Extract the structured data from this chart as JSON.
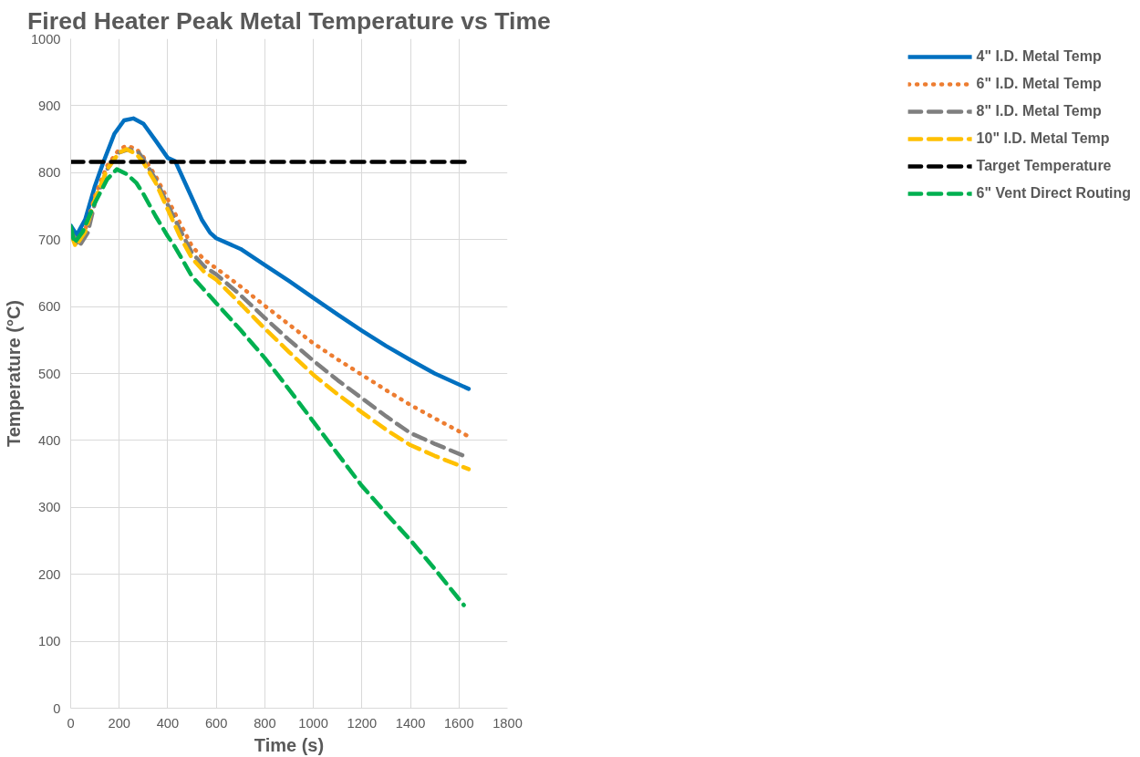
{
  "chart_data": {
    "type": "line",
    "title": "Fired Heater Peak Metal Temperature vs Time",
    "xlabel": "Time (s)",
    "ylabel": "Temperature (°C)",
    "xlim": [
      0,
      1800
    ],
    "xticks": [
      0,
      200,
      400,
      600,
      800,
      1000,
      1200,
      1400,
      1600,
      1800
    ],
    "ylim": [
      0,
      1000
    ],
    "yticks": [
      0,
      100,
      200,
      300,
      400,
      500,
      600,
      700,
      800,
      900,
      1000
    ],
    "grid": true,
    "legend": "right",
    "marker": "none",
    "series": [
      {
        "name": "4\" I.D. Metal Temp",
        "color": "#0070c0",
        "line_style": "solid",
        "x": [
          0,
          25,
          60,
          100,
          133,
          180,
          220,
          258,
          300,
          350,
          400,
          431,
          480,
          540,
          575,
          600,
          700,
          800,
          900,
          1000,
          1100,
          1200,
          1300,
          1400,
          1500,
          1640
        ],
        "values": [
          721,
          707,
          730,
          780,
          814,
          858,
          878,
          881,
          873,
          848,
          822,
          817,
          778,
          730,
          710,
          702,
          686,
          662,
          638,
          613,
          588,
          564,
          541,
          520,
          500,
          477
        ]
      },
      {
        "name": "6\" I.D. Metal Temp",
        "color": "#ed7d31",
        "line_style": "dotted",
        "x": [
          0,
          25,
          60,
          100,
          150,
          200,
          230,
          270,
          300,
          350,
          400,
          450,
          500,
          550,
          600,
          700,
          800,
          900,
          1000,
          1100,
          1200,
          1300,
          1400,
          1500,
          1640
        ],
        "values": [
          715,
          695,
          715,
          765,
          810,
          835,
          840,
          836,
          823,
          795,
          760,
          725,
          690,
          670,
          657,
          630,
          601,
          573,
          545,
          521,
          498,
          475,
          453,
          433,
          406
        ]
      },
      {
        "name": "8\" I.D. Metal Temp",
        "color": "#7f7f7f",
        "line_style": "dashed",
        "x": [
          0,
          35,
          70,
          100,
          150,
          200,
          240,
          280,
          300,
          350,
          400,
          450,
          500,
          550,
          600,
          700,
          800,
          900,
          1000,
          1100,
          1200,
          1300,
          1400,
          1500,
          1640
        ],
        "values": [
          712,
          690,
          710,
          755,
          805,
          830,
          835,
          830,
          820,
          790,
          752,
          715,
          680,
          660,
          648,
          617,
          583,
          550,
          519,
          490,
          463,
          436,
          411,
          395,
          374
        ]
      },
      {
        "name": "10\" I.D. Metal Temp",
        "color": "#ffc000",
        "line_style": "dashed",
        "x": [
          0,
          20,
          60,
          100,
          150,
          200,
          230,
          270,
          300,
          350,
          400,
          450,
          500,
          550,
          600,
          700,
          800,
          900,
          1000,
          1100,
          1200,
          1300,
          1400,
          1500,
          1640
        ],
        "values": [
          710,
          690,
          712,
          760,
          805,
          830,
          835,
          828,
          815,
          785,
          745,
          705,
          672,
          652,
          640,
          604,
          567,
          532,
          498,
          469,
          442,
          416,
          393,
          377,
          357
        ]
      },
      {
        "name": "Target Temperature",
        "color": "#000000",
        "line_style": "dashed",
        "x": [
          0,
          1640
        ],
        "values": [
          816,
          816
        ]
      },
      {
        "name": "6\" Vent Direct Routing",
        "color": "#00b050",
        "line_style": "dashed",
        "x": [
          0,
          15,
          50,
          100,
          150,
          190,
          230,
          270,
          300,
          350,
          400,
          430,
          500,
          600,
          700,
          800,
          900,
          1000,
          1100,
          1200,
          1300,
          1400,
          1500,
          1620
        ],
        "values": [
          720,
          695,
          712,
          755,
          790,
          805,
          798,
          785,
          768,
          735,
          705,
          689,
          645,
          605,
          565,
          523,
          476,
          428,
          380,
          332,
          291,
          251,
          208,
          154
        ]
      }
    ]
  }
}
